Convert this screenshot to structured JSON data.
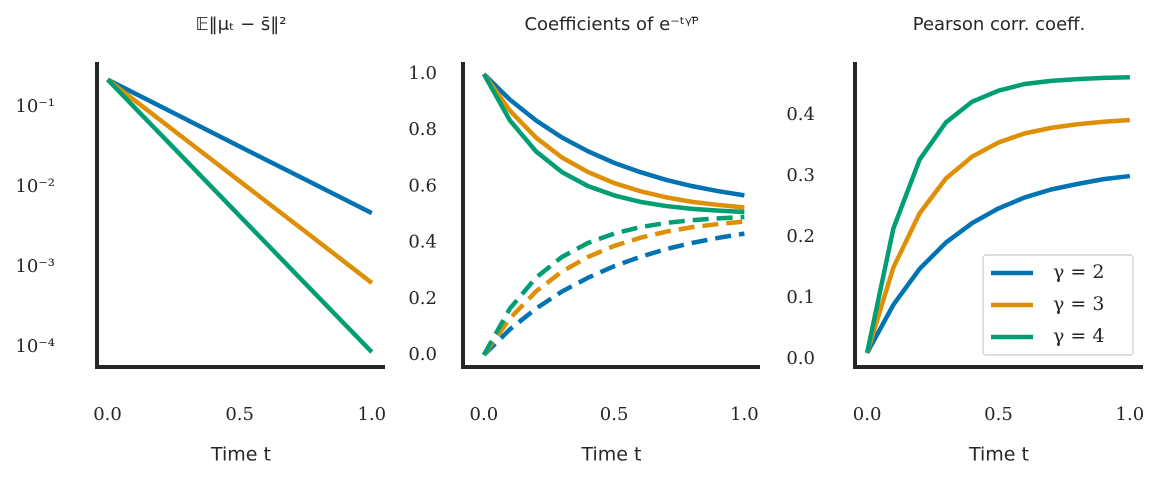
{
  "chart_data": [
    {
      "type": "line",
      "title": "𝔼‖μₜ − s̄‖²",
      "x_label": "Time t",
      "yscale": "log",
      "x": [
        0,
        0.25,
        0.5,
        0.75,
        1
      ],
      "series": [
        {
          "color": "#0173b2",
          "values": [
            0.22,
            0.084,
            0.032,
            0.0123,
            0.0047
          ]
        },
        {
          "color": "#de8f05",
          "values": [
            0.22,
            0.051,
            0.0118,
            0.00274,
            0.00063
          ]
        },
        {
          "color": "#029e73",
          "values": [
            0.22,
            0.0309,
            0.00434,
            0.00061,
            8.6e-05
          ]
        }
      ],
      "xlim": [
        -0.04,
        1.05
      ],
      "xticks": [
        {
          "value": 0,
          "label": "0.0"
        },
        {
          "value": 0.5,
          "label": "0.5"
        },
        {
          "value": 1,
          "label": "1.0"
        }
      ],
      "ylim": [
        5.6e-05,
        0.365
      ],
      "yticks": [
        {
          "value": 0.1,
          "label": "10⁻¹"
        },
        {
          "value": 0.01,
          "label": "10⁻²"
        },
        {
          "value": 0.001,
          "label": "10⁻³"
        },
        {
          "value": 0.0001,
          "label": "10⁻⁴"
        }
      ]
    },
    {
      "type": "line",
      "title": "Coefficients of e⁻ᵗᵞᴾ̄",
      "x_label": "Time t",
      "x": [
        0,
        0.1,
        0.2,
        0.3,
        0.4,
        0.5,
        0.6,
        0.7,
        0.8,
        0.9,
        1
      ],
      "series": [
        {
          "color": "#0173b2",
          "dash": false,
          "values": [
            1,
            0.909,
            0.835,
            0.774,
            0.725,
            0.684,
            0.651,
            0.623,
            0.601,
            0.583,
            0.568
          ]
        },
        {
          "color": "#de8f05",
          "dash": false,
          "values": [
            1,
            0.87,
            0.774,
            0.703,
            0.651,
            0.612,
            0.583,
            0.561,
            0.545,
            0.534,
            0.525
          ]
        },
        {
          "color": "#029e73",
          "dash": false,
          "values": [
            1,
            0.835,
            0.725,
            0.651,
            0.601,
            0.568,
            0.545,
            0.53,
            0.52,
            0.514,
            0.509
          ]
        },
        {
          "color": "#0173b2",
          "dash": true,
          "values": [
            0,
            0.091,
            0.165,
            0.226,
            0.275,
            0.316,
            0.349,
            0.377,
            0.399,
            0.417,
            0.432
          ]
        },
        {
          "color": "#de8f05",
          "dash": true,
          "values": [
            0,
            0.13,
            0.226,
            0.297,
            0.349,
            0.388,
            0.417,
            0.439,
            0.455,
            0.466,
            0.475
          ]
        },
        {
          "color": "#029e73",
          "dash": true,
          "values": [
            0,
            0.165,
            0.275,
            0.349,
            0.399,
            0.432,
            0.455,
            0.47,
            0.48,
            0.486,
            0.491
          ]
        }
      ],
      "xlim": [
        -0.08,
        1.06
      ],
      "xticks": [
        {
          "value": 0,
          "label": "0.0"
        },
        {
          "value": 0.5,
          "label": "0.5"
        },
        {
          "value": 1,
          "label": "1.0"
        }
      ],
      "ylim": [
        -0.043,
        1.043
      ],
      "yticks": [
        {
          "value": 0,
          "label": "0.0"
        },
        0.2,
        0.4,
        0.6,
        0.8,
        {
          "value": 1,
          "label": "1.0"
        }
      ]
    },
    {
      "type": "line",
      "title": "Pearson corr. coeff.",
      "x_label": "Time t",
      "legend": "lower right",
      "x": [
        0,
        0.1,
        0.2,
        0.3,
        0.4,
        0.5,
        0.6,
        0.7,
        0.8,
        0.9,
        1
      ],
      "series": [
        {
          "name": "γ = 2",
          "color": "#0173b2",
          "values": [
            0.01,
            0.089,
            0.148,
            0.191,
            0.223,
            0.247,
            0.265,
            0.278,
            0.287,
            0.295,
            0.3
          ]
        },
        {
          "name": "γ = 3",
          "color": "#de8f05",
          "values": [
            0.01,
            0.15,
            0.239,
            0.296,
            0.332,
            0.355,
            0.37,
            0.379,
            0.385,
            0.389,
            0.392
          ]
        },
        {
          "name": "γ = 4",
          "color": "#029e73",
          "values": [
            0.01,
            0.214,
            0.327,
            0.388,
            0.422,
            0.44,
            0.451,
            0.456,
            0.459,
            0.461,
            0.462
          ]
        }
      ],
      "xlim": [
        -0.046,
        1.05
      ],
      "xticks": [
        {
          "value": 0,
          "label": "0.0"
        },
        {
          "value": 0.5,
          "label": "0.5"
        },
        {
          "value": 1,
          "label": "1.0"
        }
      ],
      "ylim": [
        -0.013,
        0.487
      ],
      "yticks": [
        {
          "value": 0,
          "label": "0.0"
        },
        0.1,
        0.2,
        0.3,
        0.4
      ]
    }
  ]
}
